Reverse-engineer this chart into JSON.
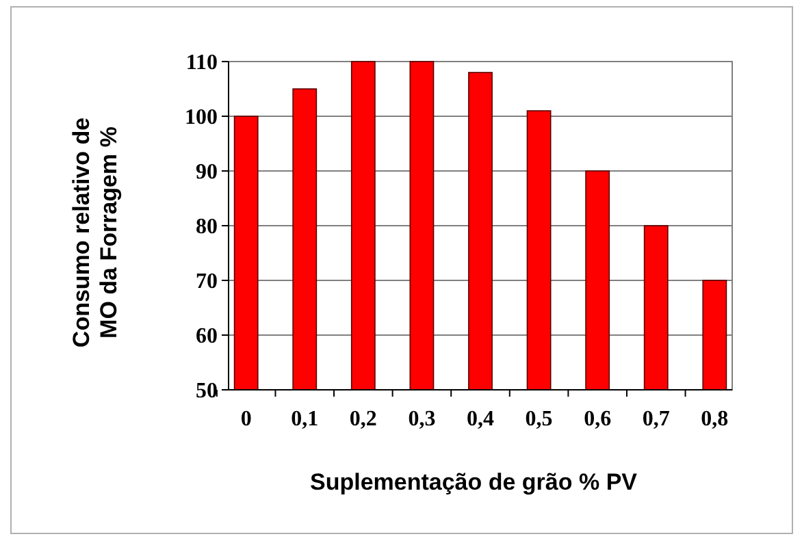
{
  "chart_data": {
    "type": "bar",
    "xlabel": "Suplementação de grão % PV",
    "ylabel": "Consumo relativo de MO da Forragem %",
    "categories": [
      "0",
      "0,1",
      "0,2",
      "0,3",
      "0,4",
      "0,5",
      "0,6",
      "0,7",
      "0,8"
    ],
    "values": [
      100,
      105,
      110,
      110,
      108,
      101,
      90,
      80,
      70
    ],
    "color": "#ff0000",
    "ylim": [
      50,
      110
    ],
    "yticks": [
      50,
      60,
      70,
      80,
      90,
      100,
      110
    ],
    "grid": "y"
  }
}
